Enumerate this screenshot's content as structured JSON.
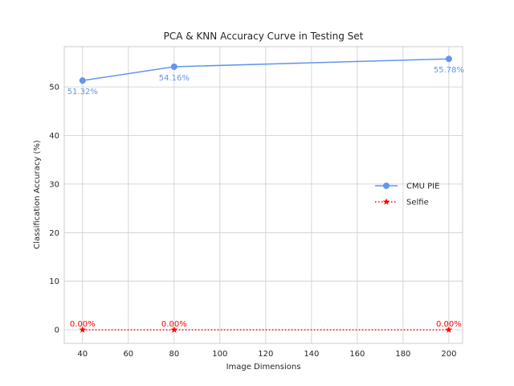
{
  "chart_data": {
    "type": "line",
    "title": "PCA & KNN Accuracy Curve in Testing Set",
    "xlabel": "Image Dimensions",
    "ylabel": "Classification Accuracy (%)",
    "xlim": [
      32,
      206
    ],
    "ylim": [
      -2.8,
      58.3
    ],
    "xticks": [
      40,
      60,
      80,
      100,
      120,
      140,
      160,
      180,
      200
    ],
    "yticks": [
      0,
      10,
      20,
      30,
      40,
      50
    ],
    "grid": true,
    "legend_position": "center-right",
    "series": [
      {
        "name": "CMU PIE",
        "x": [
          40,
          80,
          200
        ],
        "y": [
          51.32,
          54.16,
          55.78
        ],
        "labels": [
          "51.32%",
          "54.16%",
          "55.78%"
        ],
        "color": "#6495ed",
        "line_style": "solid",
        "marker": "circle"
      },
      {
        "name": "Selfie",
        "x": [
          40,
          80,
          200
        ],
        "y": [
          0,
          0,
          0
        ],
        "labels": [
          "0.00%",
          "0.00%",
          "0.00%"
        ],
        "color": "#ff0000",
        "line_style": "dotted",
        "marker": "star"
      }
    ]
  }
}
